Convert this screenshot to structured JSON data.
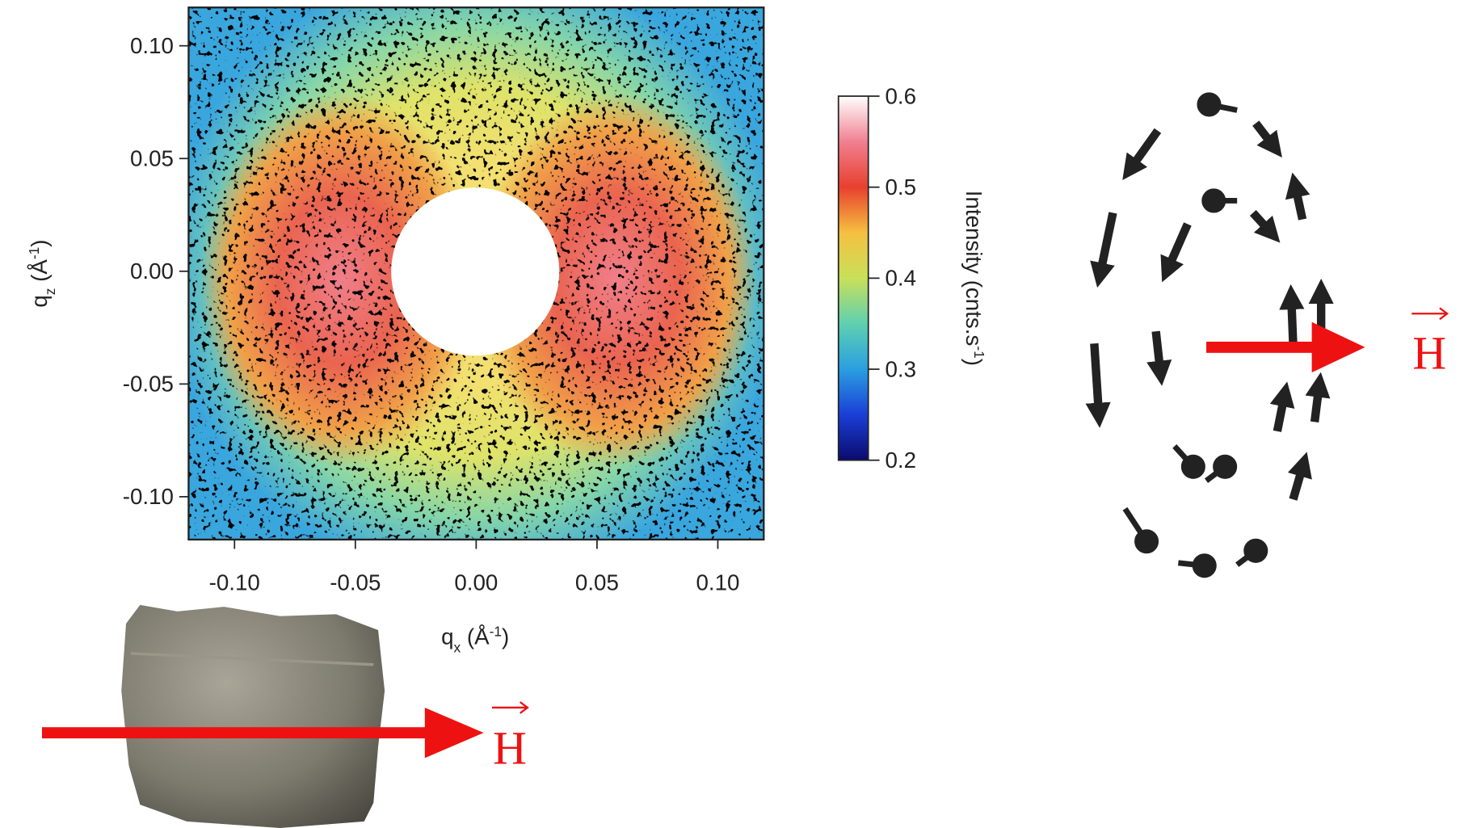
{
  "chart_data": {
    "type": "heatmap",
    "x_label": [
      "q",
      "x",
      " (Å",
      "-1",
      ")"
    ],
    "y_label": [
      "q",
      "z",
      " (Å",
      "-1",
      ")"
    ],
    "xlim": [
      -0.119,
      0.119
    ],
    "ylim": [
      -0.119,
      0.117
    ],
    "xticks": [
      {
        "value": -0.1,
        "label": "-0.10"
      },
      {
        "value": -0.05,
        "label": "-0.05"
      },
      {
        "value": 0,
        "label": "0.00"
      },
      {
        "value": 0.05,
        "label": "0.05"
      },
      {
        "value": 0.1,
        "label": "0.10"
      }
    ],
    "yticks": [
      {
        "value": -0.1,
        "label": "-0.10"
      },
      {
        "value": -0.05,
        "label": "-0.05"
      },
      {
        "value": 0,
        "label": "0.00"
      },
      {
        "value": 0.05,
        "label": "0.05"
      },
      {
        "value": 0.1,
        "label": "0.10"
      }
    ],
    "colorbar": {
      "label": [
        "Intensity (cnts.s",
        "-1",
        ")"
      ],
      "lim": [
        0.2,
        0.6
      ],
      "ticks": [
        0.2,
        0.3,
        0.4,
        0.5,
        0.6
      ],
      "colors": [
        "#0b0b6e",
        "#1a3fd6",
        "#2a9fe0",
        "#5fd0b0",
        "#c8e05a",
        "#f5c040",
        "#e8402e",
        "#f08090",
        "#ffffff"
      ]
    }
  },
  "annotations": [
    "H",
    "H"
  ]
}
